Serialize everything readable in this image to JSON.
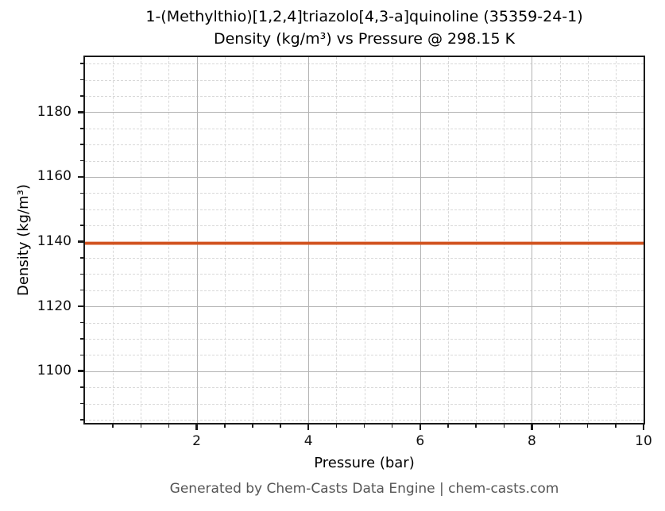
{
  "chart_data": {
    "type": "line",
    "title": "1-(Methylthio)[1,2,4]triazolo[4,3-a]quinoline (35359-24-1) Density (kg/m³) vs Pressure @ 298.15 K",
    "title_lines": [
      "1-(Methylthio)[1,2,4]triazolo[4,3-a]quinoline (35359-24-1)",
      "Density (kg/m³) vs Pressure @ 298.15 K"
    ],
    "xlabel": "Pressure (bar)",
    "ylabel": "Density (kg/m³)",
    "xlim": [
      0,
      10
    ],
    "ylim": [
      1084,
      1197
    ],
    "x_major_ticks": [
      2,
      4,
      6,
      8,
      10
    ],
    "x_minor_step": 0.5,
    "y_major_ticks": [
      1100,
      1120,
      1140,
      1160,
      1180
    ],
    "y_minor_step": 5,
    "grid": {
      "major": true,
      "minor": true
    },
    "legend_position": "none",
    "series": [
      {
        "name": "Density at 298.15 K",
        "color": "#d1531f",
        "x": [
          0,
          1,
          2,
          3,
          4,
          5,
          6,
          7,
          8,
          9,
          10
        ],
        "y": [
          1139.5,
          1139.5,
          1139.5,
          1139.5,
          1139.5,
          1139.5,
          1139.5,
          1139.5,
          1139.5,
          1139.5,
          1139.5
        ]
      }
    ]
  },
  "footer": {
    "text": "Generated by Chem-Casts Data Engine | chem-casts.com"
  },
  "colors": {
    "background": "#ffffff",
    "spine": "#1b1b1b",
    "grid_major": "#b3b3b3",
    "grid_minor": "#d9d9d9",
    "tick_label": "#111111",
    "line": "#d1531f",
    "footer_text": "#555555"
  }
}
